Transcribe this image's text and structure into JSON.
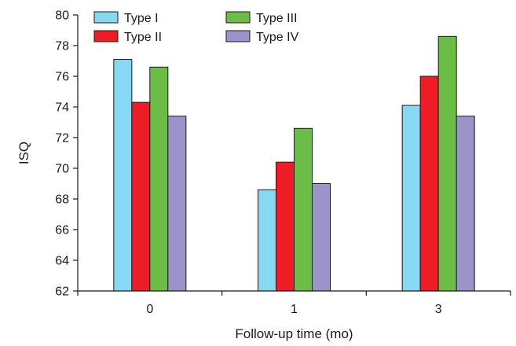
{
  "chart_data": {
    "type": "bar",
    "title": "",
    "xlabel": "Follow-up time (mo)",
    "ylabel": "ISQ",
    "categories": [
      "0",
      "1",
      "3"
    ],
    "ylim": [
      62,
      80
    ],
    "yticks": [
      62,
      64,
      66,
      68,
      70,
      72,
      74,
      76,
      78,
      80
    ],
    "grid": false,
    "legend_position": "top-left",
    "series": [
      {
        "name": "Type I",
        "color": "#87d8f3",
        "values": [
          77.1,
          68.6,
          74.1
        ]
      },
      {
        "name": "Type II",
        "color": "#ee1c25",
        "values": [
          74.3,
          70.4,
          76.0
        ]
      },
      {
        "name": "Type III",
        "color": "#6cbd45",
        "values": [
          76.6,
          72.6,
          78.6
        ]
      },
      {
        "name": "Type IV",
        "color": "#9b93c9",
        "values": [
          73.4,
          69.0,
          73.4
        ]
      }
    ]
  }
}
